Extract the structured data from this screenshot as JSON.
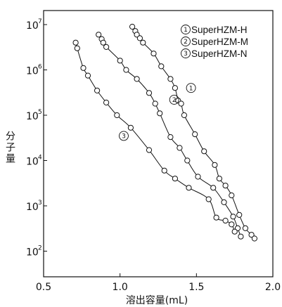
{
  "chart_data": {
    "type": "scatter",
    "xlabel": "溶出容量(mL)",
    "ylabel": "分子量",
    "xlim": [
      0.5,
      2.0
    ],
    "ylim_log10": [
      1.5,
      7.3
    ],
    "y_scale": "log",
    "grid": false,
    "legend_placement": "top-right",
    "x_ticks": [
      "0.5",
      "1.0",
      "1.5",
      "2.0"
    ],
    "y_ticks": [
      {
        "base": "10",
        "exp": "7",
        "value": 10000000
      },
      {
        "base": "10",
        "exp": "6",
        "value": 1000000
      },
      {
        "base": "10",
        "exp": "5",
        "value": 100000
      },
      {
        "base": "10",
        "exp": "4",
        "value": 10000
      },
      {
        "base": "10",
        "exp": "3",
        "value": 1000
      },
      {
        "base": "10",
        "exp": "2",
        "value": 100
      }
    ],
    "series": [
      {
        "name": "SuperHZM-H",
        "marker": "①",
        "points": [
          [
            1.08,
            9000000
          ],
          [
            1.1,
            7200000
          ],
          [
            1.11,
            6000000
          ],
          [
            1.13,
            5000000
          ],
          [
            1.15,
            4000000
          ],
          [
            1.22,
            2300000
          ],
          [
            1.27,
            1200000
          ],
          [
            1.33,
            630000
          ],
          [
            1.36,
            400000
          ],
          [
            1.38,
            210000
          ],
          [
            1.4,
            180000
          ],
          [
            1.42,
            100000
          ],
          [
            1.49,
            38000
          ],
          [
            1.55,
            16000
          ],
          [
            1.62,
            8000
          ],
          [
            1.65,
            4000
          ],
          [
            1.69,
            2800
          ],
          [
            1.73,
            1700
          ],
          [
            1.78,
            630
          ],
          [
            1.82,
            320
          ],
          [
            1.86,
            230
          ],
          [
            1.88,
            190
          ]
        ]
      },
      {
        "name": "SuperHZM-M",
        "marker": "②",
        "points": [
          [
            0.86,
            6000000
          ],
          [
            0.88,
            4800000
          ],
          [
            0.89,
            4000000
          ],
          [
            0.91,
            3200000
          ],
          [
            1.0,
            1600000
          ],
          [
            1.04,
            1000000
          ],
          [
            1.11,
            630000
          ],
          [
            1.19,
            310000
          ],
          [
            1.23,
            180000
          ],
          [
            1.26,
            110000
          ],
          [
            1.33,
            33000
          ],
          [
            1.39,
            19000
          ],
          [
            1.44,
            10000
          ],
          [
            1.51,
            4400
          ],
          [
            1.61,
            2500
          ],
          [
            1.68,
            1200
          ],
          [
            1.74,
            580
          ],
          [
            1.77,
            320
          ],
          [
            1.79,
            210
          ]
        ]
      },
      {
        "name": "SuperHZM-N",
        "marker": "③",
        "points": [
          [
            0.71,
            4000000
          ],
          [
            0.72,
            3000000
          ],
          [
            0.76,
            1100000
          ],
          [
            0.79,
            750000
          ],
          [
            0.85,
            350000
          ],
          [
            0.91,
            190000
          ],
          [
            0.98,
            100000
          ],
          [
            1.07,
            53000
          ],
          [
            1.19,
            17000
          ],
          [
            1.29,
            6000
          ],
          [
            1.36,
            4000
          ],
          [
            1.45,
            2500
          ],
          [
            1.58,
            1400
          ],
          [
            1.63,
            550
          ],
          [
            1.69,
            470
          ],
          [
            1.73,
            390
          ],
          [
            1.75,
            270
          ]
        ]
      }
    ],
    "curve_labels": [
      {
        "text": "①",
        "series": "SuperHZM-H"
      },
      {
        "text": "②",
        "series": "SuperHZM-M"
      },
      {
        "text": "③",
        "series": "SuperHZM-N"
      }
    ]
  }
}
